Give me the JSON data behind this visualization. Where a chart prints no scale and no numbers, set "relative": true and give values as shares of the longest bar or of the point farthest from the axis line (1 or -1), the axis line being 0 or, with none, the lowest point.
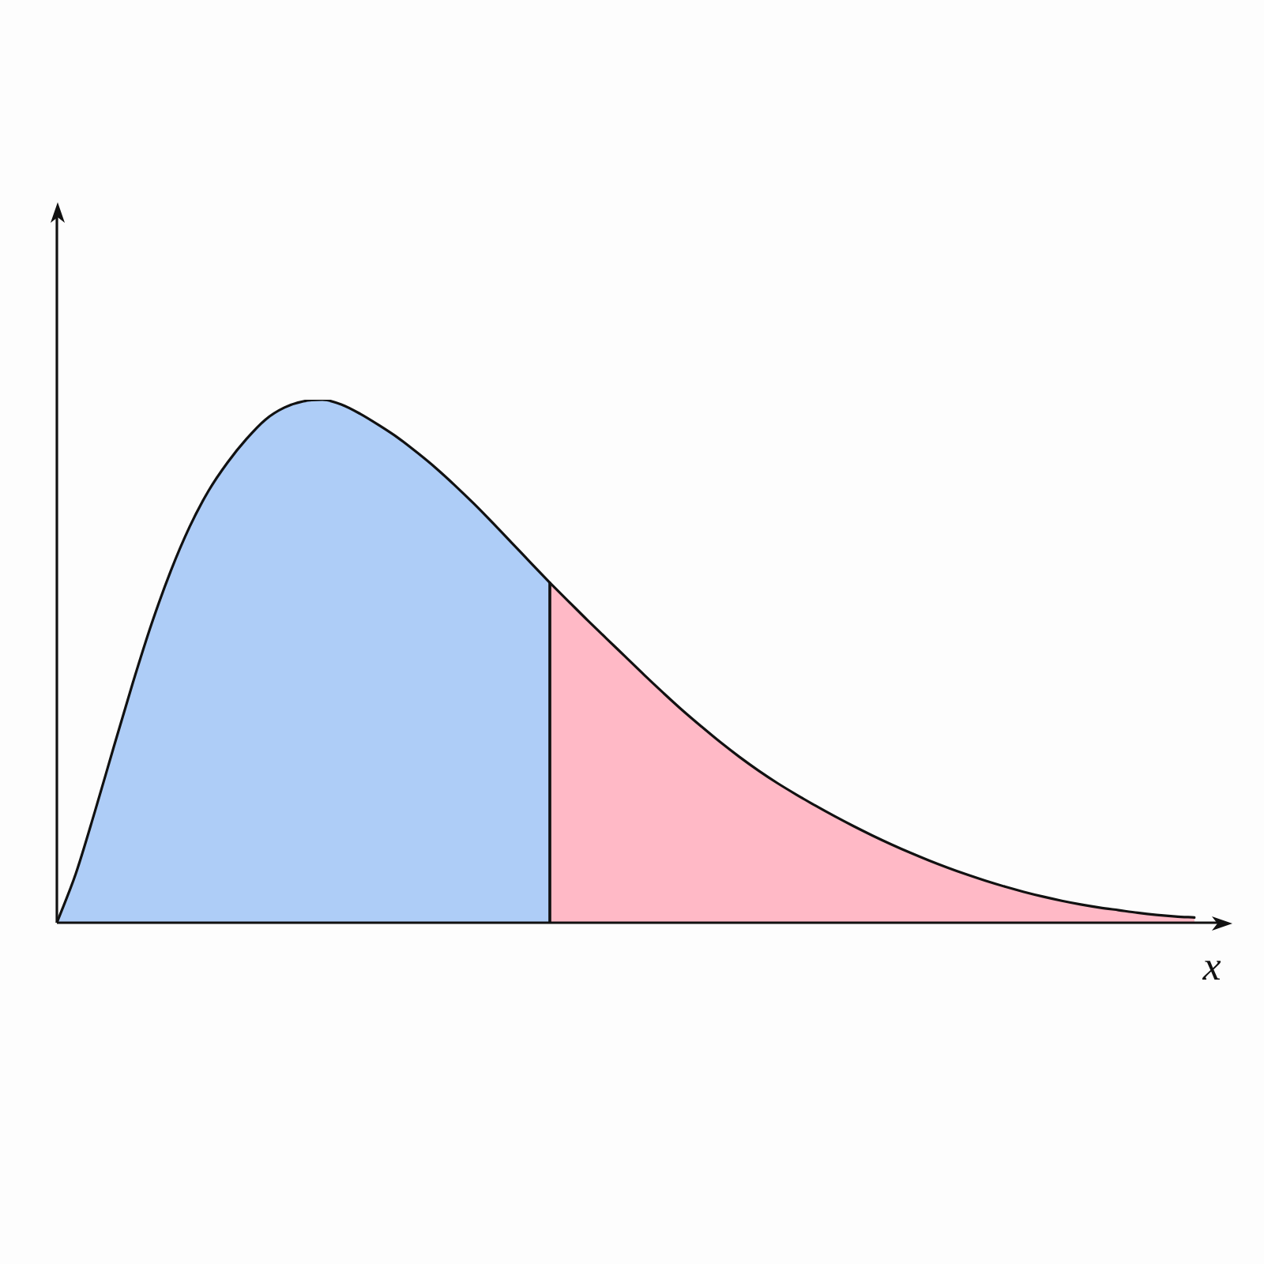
{
  "chart_data": {
    "type": "area",
    "relative": true,
    "xlabel": "x",
    "tick_labels": false,
    "categories": [
      null,
      null,
      null,
      null,
      null,
      null,
      null,
      null,
      null,
      null,
      null,
      null,
      null,
      null,
      null,
      null,
      null,
      null,
      null,
      null,
      null,
      null,
      null,
      null,
      null,
      null,
      null,
      null,
      null,
      null,
      null,
      null,
      null,
      null,
      null,
      null,
      null,
      null,
      null,
      null,
      null,
      null,
      null,
      null,
      null,
      null,
      null,
      null,
      null,
      null,
      null,
      null,
      null,
      null,
      null,
      null,
      null,
      null,
      null,
      null,
      null
    ],
    "series": [
      {
        "color": "#aecdf7",
        "values": [
          0,
          0.094,
          0.212,
          0.336,
          0.458,
          0.572,
          0.672,
          0.757,
          0.826,
          0.88,
          0.925,
          0.962,
          0.985,
          0.997,
          1,
          0.991,
          0.973,
          0.951,
          0.927,
          0.899,
          0.869,
          0.836,
          0.801,
          0.764,
          0.726,
          0.688,
          0.65,
          null,
          null,
          null,
          null,
          null,
          null,
          null,
          null,
          null,
          null,
          null,
          null,
          null,
          null,
          null,
          null,
          null,
          null,
          null,
          null,
          null,
          null,
          null,
          null,
          null,
          null,
          null,
          null,
          null,
          null,
          null,
          null,
          null,
          null
        ]
      },
      {
        "color": "#ffb9c6",
        "values": [
          null,
          null,
          null,
          null,
          null,
          null,
          null,
          null,
          null,
          null,
          null,
          null,
          null,
          null,
          null,
          null,
          null,
          null,
          null,
          null,
          null,
          null,
          null,
          null,
          null,
          null,
          0.65,
          0.614,
          0.578,
          0.543,
          0.508,
          0.473,
          0.439,
          0.406,
          0.375,
          0.345,
          0.317,
          0.291,
          0.267,
          0.245,
          0.224,
          0.204,
          0.185,
          0.167,
          0.15,
          0.134,
          0.119,
          0.105,
          0.092,
          0.08,
          0.069,
          0.059,
          0.05,
          0.042,
          0.035,
          0.029,
          0.024,
          0.019,
          0.015,
          0.012,
          0.01
        ]
      }
    ]
  }
}
